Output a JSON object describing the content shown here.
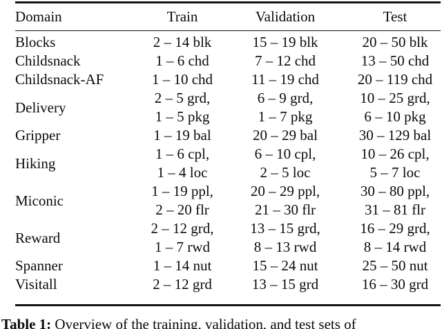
{
  "table": {
    "headers": [
      "Domain",
      "Train",
      "Validation",
      "Test"
    ],
    "rows": [
      {
        "domain": "Blocks",
        "train": [
          "2 – 14 blk"
        ],
        "validation": [
          "15 – 19 blk"
        ],
        "test": [
          "20 – 50 blk"
        ]
      },
      {
        "domain": "Childsnack",
        "train": [
          "1 – 6 chd"
        ],
        "validation": [
          "7 – 12 chd"
        ],
        "test": [
          "13 – 50 chd"
        ]
      },
      {
        "domain": "Childsnack-AF",
        "train": [
          "1 – 10 chd"
        ],
        "validation": [
          "11 – 19 chd"
        ],
        "test": [
          "20 – 119 chd"
        ]
      },
      {
        "domain": "Delivery",
        "train": [
          "2 – 5 grd,",
          "1 – 5 pkg"
        ],
        "validation": [
          "6 – 9 grd,",
          "1 – 7 pkg"
        ],
        "test": [
          "10 – 25 grd,",
          "6 – 10 pkg"
        ]
      },
      {
        "domain": "Gripper",
        "train": [
          "1 – 19 bal"
        ],
        "validation": [
          "20 – 29 bal"
        ],
        "test": [
          "30 – 129 bal"
        ]
      },
      {
        "domain": "Hiking",
        "train": [
          "1 – 6 cpl,",
          "1 – 4 loc"
        ],
        "validation": [
          "6 – 10 cpl,",
          "2 – 5 loc"
        ],
        "test": [
          "10 – 26 cpl,",
          "5 – 7 loc"
        ]
      },
      {
        "domain": "Miconic",
        "train": [
          "1 – 19 ppl,",
          "2 – 20 flr"
        ],
        "validation": [
          "20 – 29 ppl,",
          "21 – 30 flr"
        ],
        "test": [
          "30 – 80 ppl,",
          "31 – 81 flr"
        ]
      },
      {
        "domain": "Reward",
        "train": [
          "2 – 12 grd,",
          "1 – 7 rwd"
        ],
        "validation": [
          "13 – 15 grd,",
          "8 – 13 rwd"
        ],
        "test": [
          "16 – 29 grd,",
          "8 – 14 rwd"
        ]
      },
      {
        "domain": "Spanner",
        "train": [
          "1 – 14 nut"
        ],
        "validation": [
          "15 – 24 nut"
        ],
        "test": [
          "25 – 50 nut"
        ]
      },
      {
        "domain": "Visitall",
        "train": [
          "2 – 12 grd"
        ],
        "validation": [
          "13 – 15 grd"
        ],
        "test": [
          "16 – 30 grd"
        ]
      }
    ]
  },
  "caption": {
    "label": "Table 1:",
    "text": "Overview of the training, validation, and test sets of"
  }
}
